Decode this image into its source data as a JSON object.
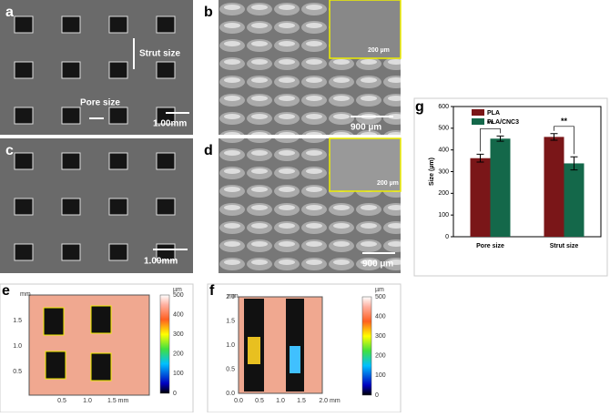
{
  "panels": {
    "a": {
      "label": "a",
      "strut": "Strut size",
      "pore": "Pore size",
      "scale": "1.00mm"
    },
    "b": {
      "label": "b",
      "scale": "900 µm",
      "inset_scale": "200 µm"
    },
    "c": {
      "label": "c",
      "scale": "1.00mm"
    },
    "d": {
      "label": "d",
      "scale": "900 µm",
      "inset_scale": "200 µm"
    },
    "e": {
      "label": "e",
      "unit_y": "mm",
      "yticks": [
        "0.5",
        "1.0",
        "1.5"
      ],
      "xticks": [
        "0.5",
        "1.0",
        "1.5 mm"
      ],
      "cbar_unit": "µm",
      "cbar_ticks": [
        "0",
        "100",
        "200",
        "300",
        "400",
        "500"
      ]
    },
    "f": {
      "label": "f",
      "unit_y": "mm",
      "yticks": [
        "0.0",
        "0.5",
        "1.0",
        "1.5",
        "2.0"
      ],
      "xticks": [
        "0.0",
        "0.5",
        "1.0",
        "1.5",
        "2.0 mm"
      ],
      "cbar_unit": "µm",
      "cbar_ticks": [
        "0",
        "100",
        "200",
        "300",
        "400",
        "500"
      ]
    },
    "g": {
      "label": "g"
    }
  },
  "chart_data": {
    "type": "bar",
    "ylabel": "Size (µm)",
    "categories": [
      "Pore size",
      "Strut size"
    ],
    "series": [
      {
        "name": "PLA",
        "color": "#7a1618",
        "values": [
          362,
          460
        ],
        "errors": [
          18,
          15
        ]
      },
      {
        "name": "PLA/CNC3",
        "color": "#14684a",
        "values": [
          452,
          338
        ],
        "errors": [
          12,
          30
        ]
      }
    ],
    "ylim": [
      0,
      600
    ],
    "yticks": [
      0,
      100,
      200,
      300,
      400,
      500,
      600
    ],
    "annotations": [
      "**",
      "**"
    ]
  }
}
